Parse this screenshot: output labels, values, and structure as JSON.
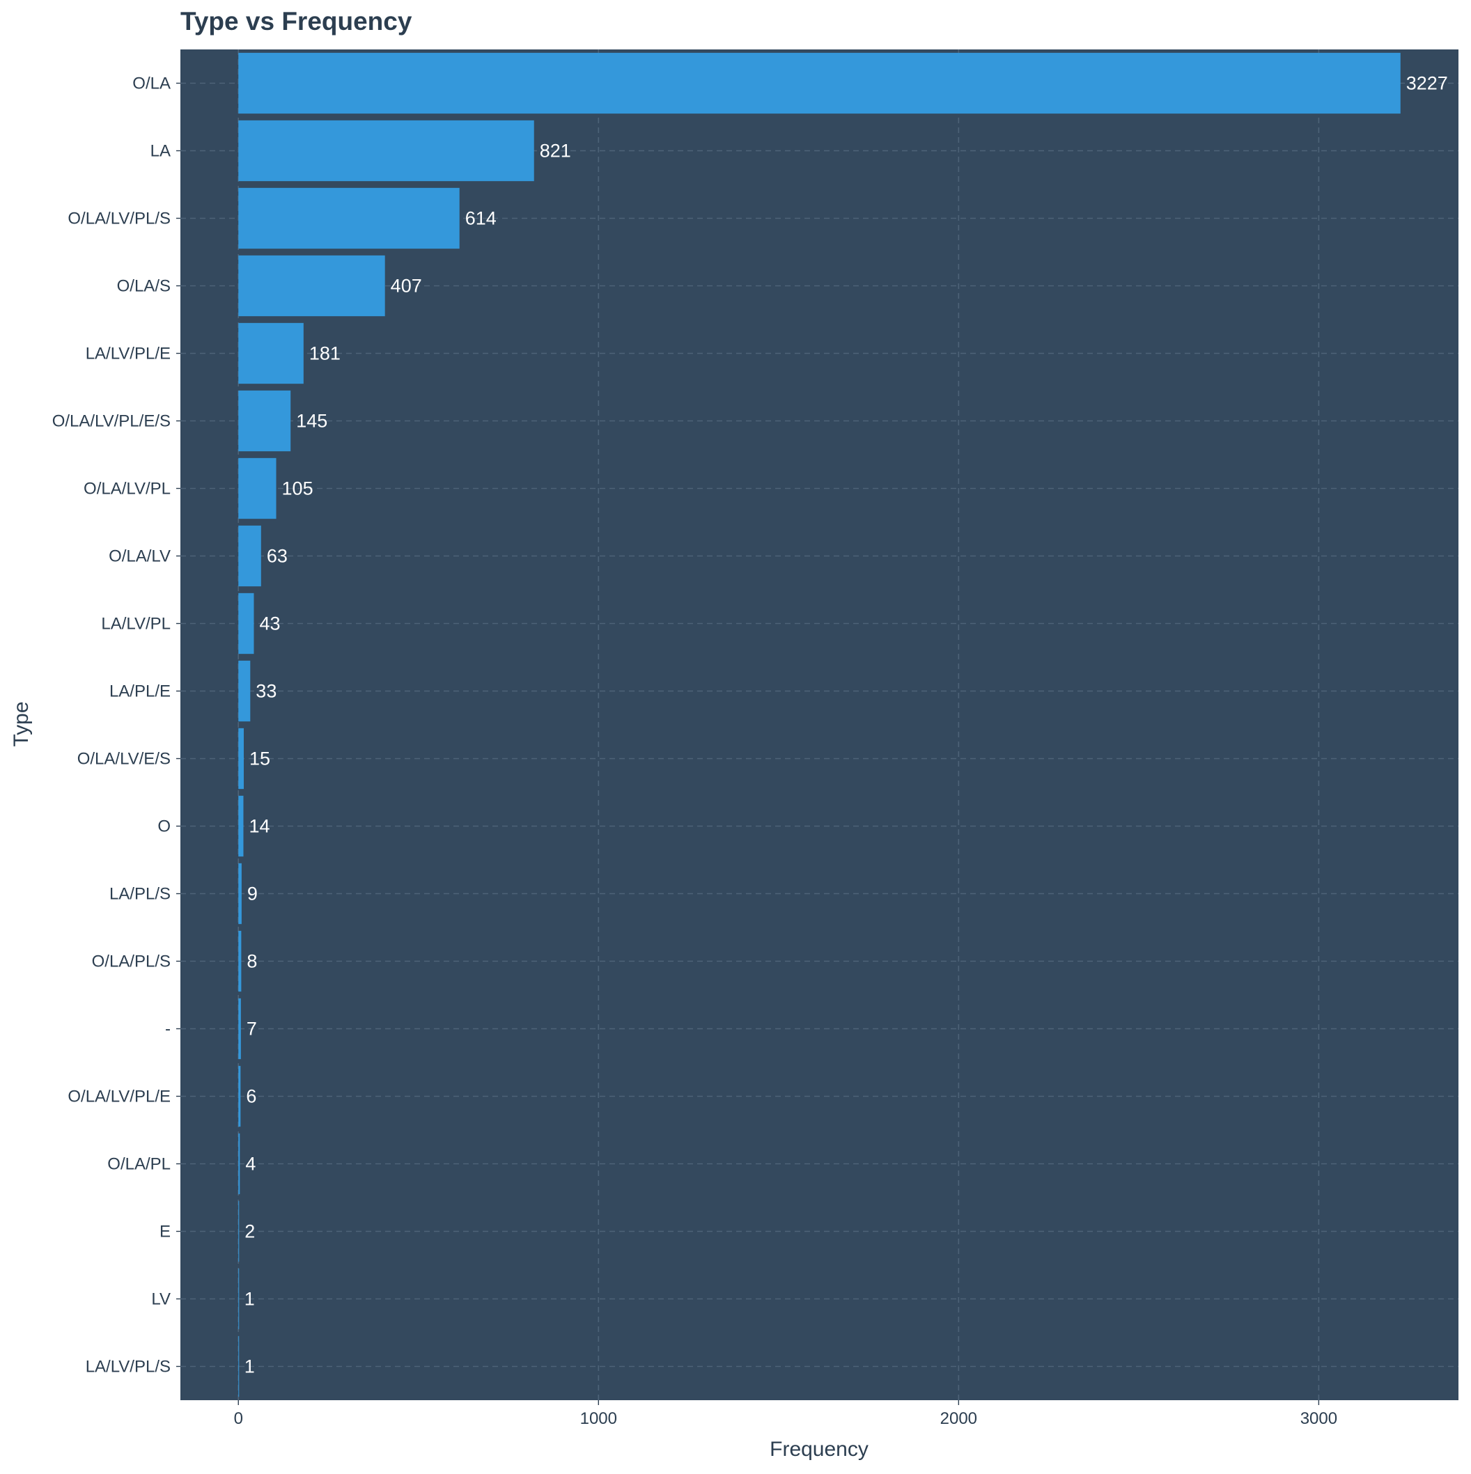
{
  "chart_data": {
    "type": "bar",
    "orientation": "horizontal",
    "title": "Type vs Frequency",
    "xlabel": "Frequency",
    "ylabel": "Type",
    "categories": [
      "O/LA",
      "LA",
      "O/LA/LV/PL/S",
      "O/LA/S",
      "LA/LV/PL/E",
      "O/LA/LV/PL/E/S",
      "O/LA/LV/PL",
      "O/LA/LV",
      "LA/LV/PL",
      "LA/PL/E",
      "O/LA/LV/E/S",
      "O",
      "LA/PL/S",
      "O/LA/PL/S",
      "-",
      "O/LA/LV/PL/E",
      "O/LA/PL",
      "E",
      "LV",
      "LA/LV/PL/S"
    ],
    "values": [
      3227,
      821,
      614,
      407,
      181,
      145,
      105,
      63,
      43,
      33,
      15,
      14,
      9,
      8,
      7,
      6,
      4,
      2,
      1,
      1
    ],
    "data_labels": [
      "3227",
      "821",
      "614",
      "407",
      "181",
      "145",
      "105",
      "63",
      "43",
      "33",
      "15",
      "14",
      "9",
      "8",
      "7",
      "6",
      "4",
      "2",
      "1",
      "1"
    ],
    "xticks": [
      0,
      1000,
      2000,
      3000
    ],
    "xtick_labels": [
      "0",
      "1000",
      "2000",
      "3000"
    ],
    "xlim": [
      -161,
      3388
    ],
    "grid": true,
    "legend": "none",
    "colors": {
      "panel_background": "#34495e",
      "bar": "#3498db",
      "grid": "#4e6378",
      "text": "#2c3e50",
      "data_label": "#ffffff",
      "page_background": "#ffffff"
    }
  }
}
